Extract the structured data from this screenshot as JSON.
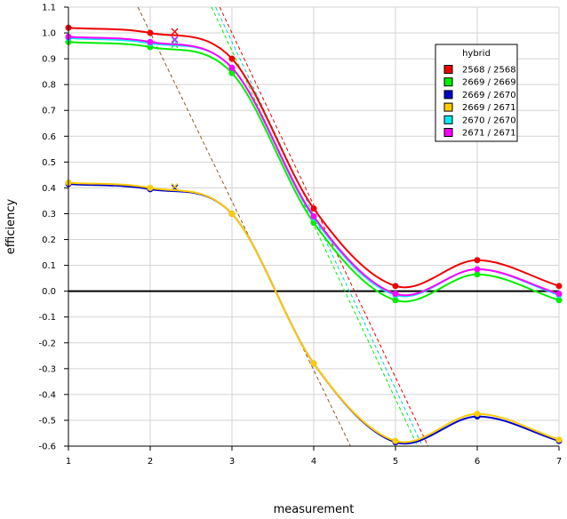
{
  "chart_data": {
    "type": "line",
    "xlabel": "measurement",
    "ylabel": "efficiency",
    "xlim": [
      1,
      7
    ],
    "ylim": [
      -0.6,
      1.1
    ],
    "x_ticks": [
      "1",
      "2",
      "3",
      "4",
      "5",
      "6",
      "7"
    ],
    "y_ticks": [
      "-0.6",
      "-0.5",
      "-0.4",
      "-0.3",
      "-0.2",
      "-0.1",
      "0.0",
      "0.1",
      "0.2",
      "0.3",
      "0.4",
      "0.5",
      "0.6",
      "0.7",
      "0.8",
      "0.9",
      "1.0",
      "1.1"
    ],
    "grid": true,
    "zero_line": true,
    "legend": {
      "title": "hybrid",
      "placement": "top-right"
    },
    "x": [
      1,
      2,
      3,
      4,
      5,
      6,
      7
    ],
    "series": [
      {
        "name": "2568 / 2568",
        "color": "#ee0000",
        "values": [
          1.02,
          1.0,
          0.9,
          0.32,
          0.02,
          0.12,
          0.02
        ],
        "cross": [
          2.3,
          1.005
        ]
      },
      {
        "name": "2669 / 2669",
        "color": "#00ee00",
        "values": [
          0.965,
          0.945,
          0.845,
          0.265,
          -0.035,
          0.065,
          -0.035
        ],
        "cross": [
          2.3,
          0.955
        ]
      },
      {
        "name": "2669 / 2670",
        "color": "#0000cc",
        "values": [
          0.415,
          0.395,
          0.3,
          -0.28,
          -0.585,
          -0.485,
          -0.58
        ],
        "cross": [
          2.3,
          0.4
        ]
      },
      {
        "name": "2669 / 2671",
        "color": "#ffcc00",
        "values": [
          0.42,
          0.4,
          0.3,
          -0.28,
          -0.58,
          -0.475,
          -0.575
        ],
        "cross": [
          2.3,
          0.405
        ]
      },
      {
        "name": "2670 / 2670",
        "color": "#00eeee",
        "values": [
          0.98,
          0.96,
          0.865,
          0.285,
          -0.015,
          0.085,
          -0.015
        ],
        "cross": [
          2.3,
          0.97
        ]
      },
      {
        "name": "2671 / 2671",
        "color": "#ff00ff",
        "values": [
          0.985,
          0.965,
          0.865,
          0.29,
          -0.01,
          0.085,
          -0.01
        ],
        "cross": [
          2.3,
          0.975
        ]
      }
    ],
    "dashed_lines": [
      {
        "color": "#8b5a2b",
        "from": [
          1.85,
          1.1
        ],
        "to": [
          4.45,
          -0.6
        ]
      },
      {
        "color": "#ee0000",
        "from": [
          2.85,
          1.1
        ],
        "to": [
          5.4,
          -0.6
        ]
      },
      {
        "color": "#00cccc",
        "from": [
          2.8,
          1.1
        ],
        "to": [
          5.33,
          -0.6
        ]
      },
      {
        "color": "#00ee00",
        "from": [
          2.75,
          1.1
        ],
        "to": [
          5.27,
          -0.6
        ]
      }
    ]
  }
}
